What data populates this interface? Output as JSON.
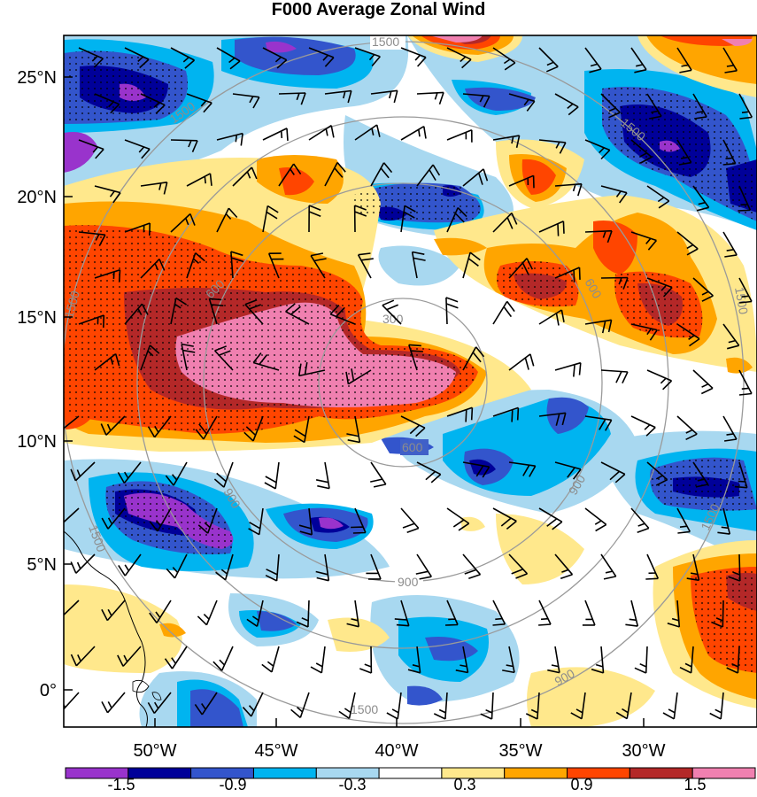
{
  "title": "F000 Average Zonal Wind",
  "map": {
    "lat_ticks": [
      "25°N",
      "20°N",
      "15°N",
      "10°N",
      "5°N",
      "0°"
    ],
    "lon_ticks": [
      "50°W",
      "45°W",
      "40°W",
      "35°W",
      "30°W"
    ],
    "ring_labels": [
      "300",
      "600",
      "900",
      "1500"
    ],
    "ring_label_instances": [
      {
        "text": "1500"
      },
      {
        "text": "1500"
      },
      {
        "text": "1500"
      },
      {
        "text": "1500"
      },
      {
        "text": "1500"
      },
      {
        "text": "1500"
      },
      {
        "text": "1500"
      },
      {
        "text": "1500"
      },
      {
        "text": "900"
      },
      {
        "text": "900"
      },
      {
        "text": "900"
      },
      {
        "text": "900"
      },
      {
        "text": "600"
      },
      {
        "text": "600"
      },
      {
        "text": "600"
      },
      {
        "text": "300"
      }
    ]
  },
  "colorbar": {
    "colors": [
      "#9933cc",
      "#000099",
      "#3355cc",
      "#00b4f0",
      "#a8d8f0",
      "#ffffff",
      "#ffe88c",
      "#ffa500",
      "#ff4500",
      "#b42828",
      "#f080b0"
    ],
    "labels": [
      "-1.5",
      "-0.9",
      "-0.3",
      "0.3",
      "0.9",
      "1.5"
    ]
  }
}
